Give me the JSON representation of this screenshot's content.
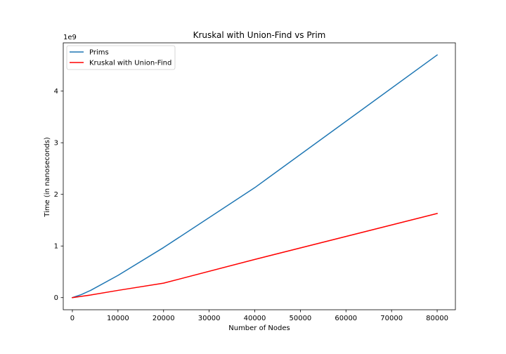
{
  "chart_data": {
    "type": "line",
    "title": "Kruskal with Union-Find vs Prim",
    "xlabel": "Number of Nodes",
    "ylabel": "Time (in nanoseconds)",
    "y_offset_label": "1e9",
    "xlim": [
      -2000,
      84000
    ],
    "ylim": [
      -0.235,
      4.935
    ],
    "y_scale_factor": 1000000000,
    "x_ticks": [
      0,
      10000,
      20000,
      30000,
      40000,
      50000,
      60000,
      70000,
      80000
    ],
    "x_tick_labels": [
      "0",
      "10000",
      "20000",
      "30000",
      "40000",
      "50000",
      "60000",
      "70000",
      "80000"
    ],
    "y_ticks": [
      0,
      1,
      2,
      3,
      4
    ],
    "y_tick_labels": [
      "0",
      "1",
      "2",
      "3",
      "4"
    ],
    "grid": false,
    "legend_position": "top-left",
    "series": [
      {
        "name": "Prims",
        "color": "#1f77b4",
        "x": [
          0,
          2000,
          4000,
          10000,
          20000,
          40000,
          80000
        ],
        "y": [
          0.0,
          0.06,
          0.14,
          0.43,
          0.97,
          2.13,
          4.7
        ]
      },
      {
        "name": "Kruskal with Union-Find",
        "color": "#ff0000",
        "x": [
          0,
          2000,
          4000,
          10000,
          20000,
          40000,
          80000
        ],
        "y": [
          0.0,
          0.025,
          0.05,
          0.14,
          0.28,
          0.74,
          1.63
        ]
      }
    ]
  }
}
